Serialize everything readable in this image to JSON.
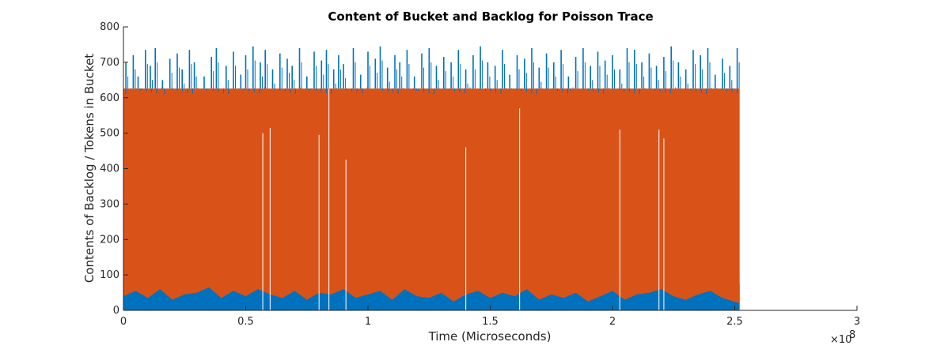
{
  "chart_data": {
    "type": "area",
    "title": "Content of Bucket and Backlog for Poisson Trace",
    "xlabel": "Time (Microseconds)",
    "ylabel": "Contents of Backlog / Tokens in Bucket",
    "x_exponent_label": "×10",
    "x_exponent_power": "8",
    "xlim": [
      0,
      3
    ],
    "ylim": [
      0,
      800
    ],
    "x_ticks": [
      "0",
      "0.5",
      "1",
      "1.5",
      "2",
      "2.5",
      "3"
    ],
    "x_tick_values": [
      0,
      0.5,
      1,
      1.5,
      2,
      2.5,
      3
    ],
    "y_ticks": [
      "0",
      "100",
      "200",
      "300",
      "400",
      "500",
      "600",
      "700",
      "800"
    ],
    "y_tick_values": [
      0,
      100,
      200,
      300,
      400,
      500,
      600,
      700,
      800
    ],
    "grid": false,
    "legend": "none",
    "data_x_end": 2.52,
    "series": [
      {
        "color": "#0072BD",
        "description_values": {
          "low_band_typical_max": 140,
          "high_band_min": 630,
          "high_band_max": 745
        },
        "upper_spike_x": [
          0.01,
          0.04,
          0.06,
          0.09,
          0.11,
          0.13,
          0.16,
          0.19,
          0.22,
          0.24,
          0.27,
          0.29,
          0.33,
          0.36,
          0.38,
          0.42,
          0.45,
          0.48,
          0.5,
          0.53,
          0.56,
          0.58,
          0.61,
          0.64,
          0.67,
          0.69,
          0.72,
          0.75,
          0.78,
          0.81,
          0.83,
          0.86,
          0.88,
          0.9,
          0.94,
          0.97,
          1.0,
          1.03,
          1.05,
          1.08,
          1.11,
          1.13,
          1.16,
          1.19,
          1.22,
          1.25,
          1.28,
          1.31,
          1.34,
          1.37,
          1.4,
          1.43,
          1.46,
          1.49,
          1.52,
          1.55,
          1.58,
          1.61,
          1.64,
          1.67,
          1.7,
          1.73,
          1.76,
          1.79,
          1.82,
          1.85,
          1.88,
          1.91,
          1.94,
          1.97,
          2.0,
          2.03,
          2.06,
          2.09,
          2.12,
          2.15,
          2.18,
          2.21,
          2.24,
          2.27,
          2.3,
          2.33,
          2.36,
          2.39,
          2.42,
          2.45,
          2.48,
          2.51
        ],
        "upper_spike_y": [
          700,
          720,
          660,
          735,
          690,
          740,
          650,
          710,
          725,
          680,
          735,
          700,
          660,
          715,
          740,
          690,
          730,
          665,
          720,
          745,
          700,
          735,
          680,
          725,
          710,
          690,
          740,
          660,
          730,
          705,
          735,
          680,
          720,
          695,
          740,
          665,
          730,
          710,
          745,
          685,
          720,
          700,
          735,
          660,
          725,
          740,
          690,
          715,
          700,
          735,
          680,
          720,
          745,
          700,
          690,
          735,
          665,
          720,
          710,
          740,
          685,
          725,
          700,
          735,
          660,
          715,
          740,
          690,
          730,
          705,
          720,
          680,
          740,
          735,
          700,
          725,
          690,
          715,
          745,
          700,
          680,
          735,
          720,
          740,
          665,
          710,
          690,
          740
        ],
        "lower_envelope_x": [
          0,
          0.05,
          0.1,
          0.15,
          0.2,
          0.25,
          0.3,
          0.35,
          0.4,
          0.45,
          0.5,
          0.55,
          0.6,
          0.65,
          0.7,
          0.75,
          0.8,
          0.85,
          0.9,
          0.95,
          1.0,
          1.05,
          1.1,
          1.15,
          1.2,
          1.25,
          1.3,
          1.35,
          1.4,
          1.45,
          1.5,
          1.55,
          1.6,
          1.65,
          1.7,
          1.75,
          1.8,
          1.85,
          1.9,
          1.95,
          2.0,
          2.05,
          2.1,
          2.15,
          2.2,
          2.25,
          2.3,
          2.35,
          2.4,
          2.45,
          2.52
        ],
        "lower_envelope_y": [
          120,
          135,
          110,
          130,
          95,
          125,
          115,
          135,
          105,
          130,
          120,
          135,
          125,
          110,
          135,
          100,
          130,
          120,
          135,
          110,
          125,
          130,
          105,
          135,
          120,
          115,
          130,
          100,
          125,
          135,
          110,
          130,
          120,
          135,
          105,
          125,
          115,
          130,
          95,
          120,
          135,
          110,
          125,
          130,
          135,
          120,
          105,
          125,
          130,
          110,
          75
        ]
      },
      {
        "color": "#D95319",
        "description_values": {
          "plateau_value": 626
        },
        "dip_x": [
          0.57,
          0.6,
          0.8,
          0.84,
          0.91,
          1.4,
          1.62,
          2.03,
          2.19,
          2.21
        ],
        "dip_y": [
          500,
          515,
          495,
          625,
          425,
          460,
          570,
          510,
          510,
          485
        ],
        "bottom_envelope_x": [
          0,
          0.05,
          0.1,
          0.15,
          0.2,
          0.25,
          0.3,
          0.35,
          0.4,
          0.45,
          0.5,
          0.55,
          0.6,
          0.65,
          0.7,
          0.75,
          0.8,
          0.85,
          0.9,
          0.95,
          1.0,
          1.05,
          1.1,
          1.15,
          1.2,
          1.25,
          1.3,
          1.35,
          1.4,
          1.45,
          1.5,
          1.55,
          1.6,
          1.65,
          1.7,
          1.75,
          1.8,
          1.85,
          1.9,
          1.95,
          2.0,
          2.05,
          2.1,
          2.15,
          2.2,
          2.25,
          2.3,
          2.35,
          2.4,
          2.45,
          2.52
        ],
        "bottom_envelope_y": [
          40,
          55,
          35,
          60,
          30,
          45,
          50,
          65,
          35,
          55,
          40,
          60,
          45,
          35,
          55,
          30,
          50,
          45,
          60,
          35,
          45,
          55,
          30,
          60,
          40,
          35,
          50,
          25,
          45,
          55,
          35,
          50,
          40,
          60,
          30,
          45,
          35,
          50,
          25,
          40,
          55,
          30,
          45,
          50,
          60,
          40,
          30,
          45,
          55,
          35,
          20
        ]
      }
    ]
  }
}
